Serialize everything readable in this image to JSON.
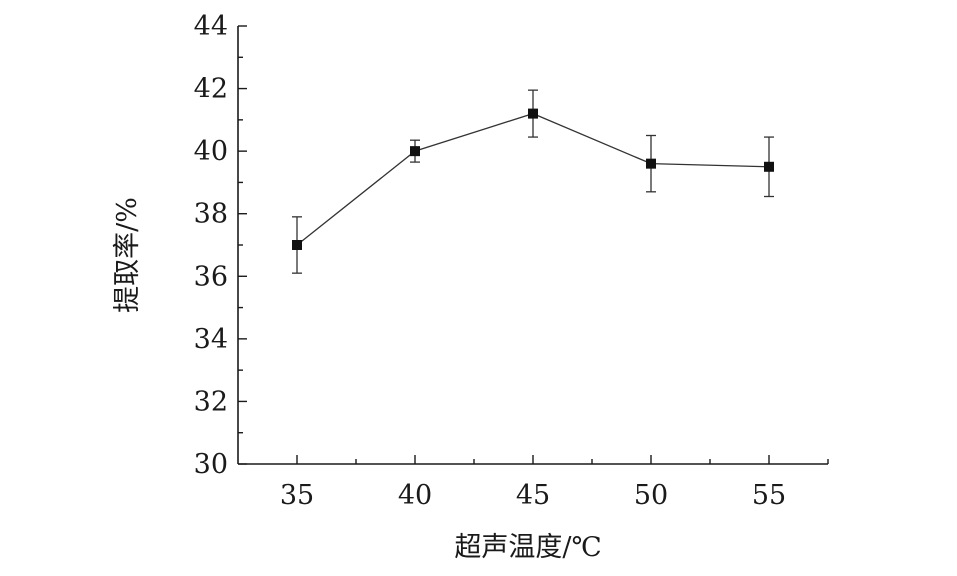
{
  "chart_data": {
    "type": "line",
    "xlabel": "超声温度/℃",
    "ylabel": "提取率/%",
    "x": [
      35,
      40,
      45,
      50,
      55
    ],
    "x_ticks": [
      35,
      40,
      45,
      50,
      55
    ],
    "xlim": [
      32.5,
      57.5
    ],
    "y_ticks": [
      30,
      32,
      34,
      36,
      38,
      40,
      42,
      44
    ],
    "ylim": [
      30,
      44
    ],
    "grid": false,
    "series": [
      {
        "values": [
          37.0,
          40.0,
          41.2,
          39.6,
          39.5
        ],
        "errors": [
          0.9,
          0.35,
          0.75,
          0.9,
          0.95
        ],
        "marker": "square",
        "color": "#111111"
      }
    ]
  }
}
